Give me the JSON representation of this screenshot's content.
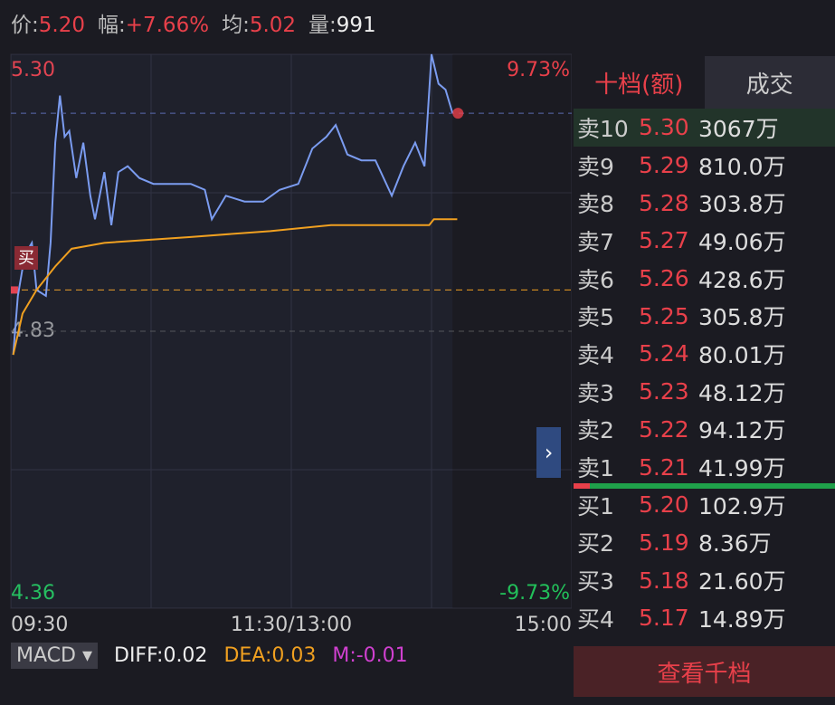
{
  "header": {
    "items": [
      [
        "价:",
        "5.20"
      ],
      [
        "幅:",
        "+7.66%"
      ],
      [
        "均:",
        "5.02"
      ],
      [
        "量:",
        "991"
      ]
    ]
  },
  "chart_data": {
    "type": "line",
    "ylim": [
      4.36,
      5.3
    ],
    "yticks": [
      {
        "value": 5.3,
        "label": "5.30"
      },
      4.83,
      4.36
    ],
    "y2lim": [
      -9.73,
      9.73
    ],
    "y2ticks": [
      {
        "value": 9.73,
        "label": "9.73%"
      },
      {
        "value": -9.73,
        "label": "-9.73%"
      }
    ],
    "xlim": [
      0,
      240
    ],
    "xticks": [
      {
        "value": 0,
        "label": "09:30"
      },
      {
        "value": 120,
        "label": "11:30/13:00"
      },
      {
        "value": 240,
        "label": "15:00"
      }
    ],
    "series": [
      {
        "color": "#7b9cf0",
        "x": [
          1,
          3,
          6,
          9,
          11,
          15,
          17,
          19,
          21,
          23,
          25,
          28,
          31,
          34,
          36,
          40,
          43,
          46,
          50,
          55,
          61,
          69,
          77,
          83,
          86,
          92,
          100,
          108,
          115,
          123,
          129,
          135,
          139,
          144,
          150,
          156,
          163,
          168,
          173,
          177,
          180,
          183,
          186,
          189
        ],
        "values": [
          4.79,
          4.89,
          4.96,
          4.98,
          4.9,
          4.89,
          4.98,
          5.15,
          5.23,
          5.16,
          5.17,
          5.09,
          5.15,
          5.06,
          5.02,
          5.1,
          5.01,
          5.1,
          5.11,
          5.09,
          5.08,
          5.08,
          5.08,
          5.07,
          5.02,
          5.06,
          5.05,
          5.05,
          5.07,
          5.08,
          5.14,
          5.16,
          5.18,
          5.13,
          5.12,
          5.12,
          5.06,
          5.11,
          5.15,
          5.11,
          5.3,
          5.25,
          5.24,
          5.2
        ]
      },
      {
        "color": "#f0a020",
        "x": [
          1,
          5,
          11,
          19,
          26,
          40,
          77,
          111,
          137,
          179,
          181,
          191
        ],
        "values": [
          4.79,
          4.86,
          4.9,
          4.94,
          4.97,
          4.98,
          4.99,
          5.0,
          5.01,
          5.01,
          5.02,
          5.02
        ]
      }
    ],
    "cost_line": 4.9,
    "buy_marker": "买",
    "grid": true
  },
  "indicator": {
    "name": "MACD",
    "items": [
      "DIFF:0.02",
      "DEA:0.03",
      "M:-0.01"
    ]
  },
  "order_book": {
    "tabs": [
      "十档(额)",
      "成交"
    ],
    "rows": [
      [
        "卖10",
        "5.30",
        "3067万"
      ],
      [
        "卖9",
        "5.29",
        "810.0万"
      ],
      [
        "卖8",
        "5.28",
        "303.8万"
      ],
      [
        "卖7",
        "5.27",
        "49.06万"
      ],
      [
        "卖6",
        "5.26",
        "428.6万"
      ],
      [
        "卖5",
        "5.25",
        "305.8万"
      ],
      [
        "卖4",
        "5.24",
        "80.01万"
      ],
      [
        "卖3",
        "5.23",
        "48.12万"
      ],
      [
        "卖2",
        "5.22",
        "94.12万"
      ],
      [
        "卖1",
        "5.21",
        "41.99万"
      ],
      [
        "买1",
        "5.20",
        "102.9万"
      ],
      [
        "买2",
        "5.19",
        "8.36万"
      ],
      [
        "买3",
        "5.18",
        "21.60万"
      ],
      [
        "买4",
        "5.17",
        "14.89万"
      ]
    ],
    "button": "查看千档"
  }
}
